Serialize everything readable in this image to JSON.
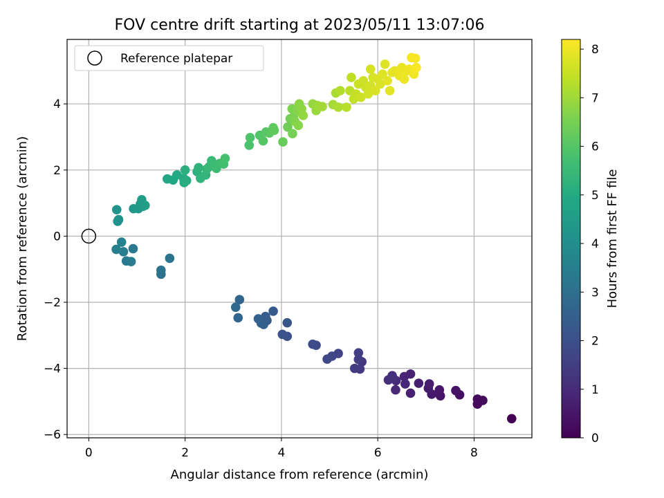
{
  "chart_data": {
    "type": "scatter",
    "title": "FOV centre drift starting at 2023/05/11 13:07:06",
    "xlabel": "Angular distance from reference (arcmin)",
    "ylabel": "Rotation from reference (arcmin)",
    "xlim": [
      -0.45,
      9.2
    ],
    "ylim": [
      -6.1,
      5.95
    ],
    "xticks": [
      0,
      2,
      4,
      6,
      8
    ],
    "yticks": [
      -6,
      -4,
      -2,
      0,
      2,
      4
    ],
    "xtick_labels": [
      "0",
      "2",
      "4",
      "6",
      "8"
    ],
    "ytick_labels": [
      "−6",
      "−4",
      "−2",
      "0",
      "2",
      "4"
    ],
    "grid": true,
    "legend": {
      "position": "top-left",
      "entries": [
        "Reference platepar"
      ]
    },
    "reference_point": {
      "x": 0,
      "y": 0,
      "marker": "open-circle"
    },
    "colorbar": {
      "label": "Hours from first FF file",
      "range": [
        0,
        8.2
      ],
      "ticks": [
        0,
        1,
        2,
        3,
        4,
        5,
        6,
        7,
        8
      ],
      "colormap": "viridis"
    },
    "points": [
      [
        8.78,
        -5.52,
        0.0
      ],
      [
        8.07,
        -5.08,
        0.15
      ],
      [
        8.07,
        -4.93,
        0.2
      ],
      [
        8.18,
        -4.97,
        0.25
      ],
      [
        7.7,
        -4.8,
        0.35
      ],
      [
        7.62,
        -4.67,
        0.4
      ],
      [
        7.3,
        -4.83,
        0.45
      ],
      [
        7.28,
        -4.65,
        0.5
      ],
      [
        7.12,
        -4.78,
        0.55
      ],
      [
        7.05,
        -4.6,
        0.6
      ],
      [
        7.07,
        -4.47,
        0.65
      ],
      [
        6.85,
        -4.45,
        0.7
      ],
      [
        6.68,
        -4.75,
        0.75
      ],
      [
        6.68,
        -4.17,
        0.8
      ],
      [
        6.55,
        -4.25,
        0.85
      ],
      [
        6.57,
        -4.47,
        0.9
      ],
      [
        6.37,
        -4.65,
        0.95
      ],
      [
        6.38,
        -4.37,
        1.0
      ],
      [
        6.3,
        -4.22,
        1.05
      ],
      [
        6.22,
        -4.35,
        1.1
      ],
      [
        6.32,
        -4.3,
        1.15
      ],
      [
        5.67,
        -3.8,
        1.3
      ],
      [
        5.63,
        -4.02,
        1.35
      ],
      [
        5.52,
        -4.0,
        1.4
      ],
      [
        5.6,
        -3.73,
        1.45
      ],
      [
        5.6,
        -3.53,
        1.5
      ],
      [
        5.18,
        -3.55,
        1.65
      ],
      [
        5.05,
        -3.63,
        1.7
      ],
      [
        4.95,
        -3.72,
        1.75
      ],
      [
        4.72,
        -3.3,
        1.85
      ],
      [
        4.65,
        -3.27,
        1.9
      ],
      [
        4.12,
        -3.03,
        2.05
      ],
      [
        4.02,
        -2.97,
        2.1
      ],
      [
        4.12,
        -2.62,
        2.2
      ],
      [
        3.83,
        -2.27,
        2.3
      ],
      [
        3.7,
        -2.55,
        2.35
      ],
      [
        3.67,
        -2.43,
        2.4
      ],
      [
        3.63,
        -2.67,
        2.45
      ],
      [
        3.58,
        -2.63,
        2.5
      ],
      [
        3.52,
        -2.5,
        2.55
      ],
      [
        3.1,
        -2.47,
        2.65
      ],
      [
        3.13,
        -1.92,
        2.7
      ],
      [
        3.05,
        -2.15,
        2.75
      ],
      [
        1.5,
        -1.15,
        3.05
      ],
      [
        1.5,
        -1.03,
        3.1
      ],
      [
        1.68,
        -0.67,
        3.15
      ],
      [
        0.92,
        -0.38,
        3.3
      ],
      [
        0.78,
        -0.75,
        3.35
      ],
      [
        0.88,
        -0.77,
        3.4
      ],
      [
        0.72,
        -0.47,
        3.45
      ],
      [
        0.57,
        -0.4,
        3.5
      ],
      [
        0.68,
        -0.18,
        3.55
      ],
      [
        0.62,
        0.5,
        4.1
      ],
      [
        0.6,
        0.45,
        4.15
      ],
      [
        0.58,
        0.8,
        4.2
      ],
      [
        0.93,
        0.83,
        4.3
      ],
      [
        1.03,
        0.83,
        4.35
      ],
      [
        1.07,
        0.97,
        4.4
      ],
      [
        1.12,
        0.9,
        4.45
      ],
      [
        1.1,
        1.1,
        4.5
      ],
      [
        1.17,
        0.93,
        4.55
      ],
      [
        1.63,
        1.73,
        4.85
      ],
      [
        1.75,
        1.7,
        4.9
      ],
      [
        1.83,
        1.85,
        4.95
      ],
      [
        1.97,
        1.75,
        5.0
      ],
      [
        1.98,
        1.62,
        5.05
      ],
      [
        2.03,
        1.68,
        5.1
      ],
      [
        2.0,
        2.0,
        5.15
      ],
      [
        2.25,
        1.95,
        5.2
      ],
      [
        2.28,
        2.07,
        5.25
      ],
      [
        2.32,
        1.75,
        5.3
      ],
      [
        2.43,
        1.85,
        5.35
      ],
      [
        2.45,
        2.03,
        5.4
      ],
      [
        2.5,
        2.1,
        5.45
      ],
      [
        2.55,
        2.28,
        5.5
      ],
      [
        2.6,
        2.15,
        5.55
      ],
      [
        2.65,
        2.05,
        5.6
      ],
      [
        2.72,
        2.2,
        5.65
      ],
      [
        2.8,
        2.18,
        5.7
      ],
      [
        2.83,
        2.35,
        5.75
      ],
      [
        3.33,
        2.75,
        5.85
      ],
      [
        3.35,
        2.98,
        5.9
      ],
      [
        3.55,
        3.05,
        5.95
      ],
      [
        3.62,
        2.88,
        6.0
      ],
      [
        3.68,
        3.15,
        6.05
      ],
      [
        3.75,
        3.12,
        6.1
      ],
      [
        3.83,
        3.28,
        6.15
      ],
      [
        3.85,
        3.2,
        6.2
      ],
      [
        4.03,
        2.85,
        6.3
      ],
      [
        4.13,
        3.3,
        6.4
      ],
      [
        4.18,
        3.55,
        6.45
      ],
      [
        4.23,
        3.1,
        6.5
      ],
      [
        4.25,
        3.6,
        6.55
      ],
      [
        4.22,
        3.85,
        6.6
      ],
      [
        4.28,
        3.47,
        6.65
      ],
      [
        4.33,
        3.78,
        6.7
      ],
      [
        4.35,
        3.35,
        6.72
      ],
      [
        4.37,
        4.0,
        6.75
      ],
      [
        4.42,
        3.85,
        6.8
      ],
      [
        4.45,
        3.65,
        6.85
      ],
      [
        4.65,
        4.0,
        6.9
      ],
      [
        4.72,
        3.8,
        6.95
      ],
      [
        4.75,
        3.95,
        7.0
      ],
      [
        4.85,
        3.92,
        7.05
      ],
      [
        5.07,
        3.98,
        7.1
      ],
      [
        5.13,
        4.33,
        7.15
      ],
      [
        5.18,
        3.9,
        7.2
      ],
      [
        5.22,
        4.4,
        7.25
      ],
      [
        5.35,
        3.9,
        7.3
      ],
      [
        5.42,
        4.4,
        7.35
      ],
      [
        5.45,
        4.8,
        7.4
      ],
      [
        5.5,
        4.15,
        7.45
      ],
      [
        5.55,
        4.3,
        7.5
      ],
      [
        5.6,
        4.6,
        7.55
      ],
      [
        5.65,
        4.2,
        7.55
      ],
      [
        5.7,
        4.7,
        7.6
      ],
      [
        5.75,
        4.5,
        7.6
      ],
      [
        5.8,
        4.3,
        7.65
      ],
      [
        5.85,
        4.55,
        7.65
      ],
      [
        5.85,
        5.05,
        7.7
      ],
      [
        5.9,
        4.8,
        7.7
      ],
      [
        5.95,
        4.4,
        7.72
      ],
      [
        6.0,
        4.75,
        7.75
      ],
      [
        6.05,
        4.6,
        7.75
      ],
      [
        6.1,
        4.9,
        7.8
      ],
      [
        6.15,
        5.2,
        7.8
      ],
      [
        6.2,
        4.7,
        7.85
      ],
      [
        6.25,
        4.4,
        7.85
      ],
      [
        6.3,
        4.95,
        7.9
      ],
      [
        6.35,
        5.0,
        7.9
      ],
      [
        6.45,
        4.85,
        7.95
      ],
      [
        6.5,
        5.1,
        7.95
      ],
      [
        6.55,
        4.75,
        8.0
      ],
      [
        6.6,
        5.0,
        8.0
      ],
      [
        6.65,
        5.05,
        8.02
      ],
      [
        6.75,
        4.9,
        8.05
      ],
      [
        6.7,
        5.4,
        8.1
      ],
      [
        6.78,
        5.38,
        8.12
      ],
      [
        6.8,
        5.1,
        8.15
      ]
    ]
  }
}
